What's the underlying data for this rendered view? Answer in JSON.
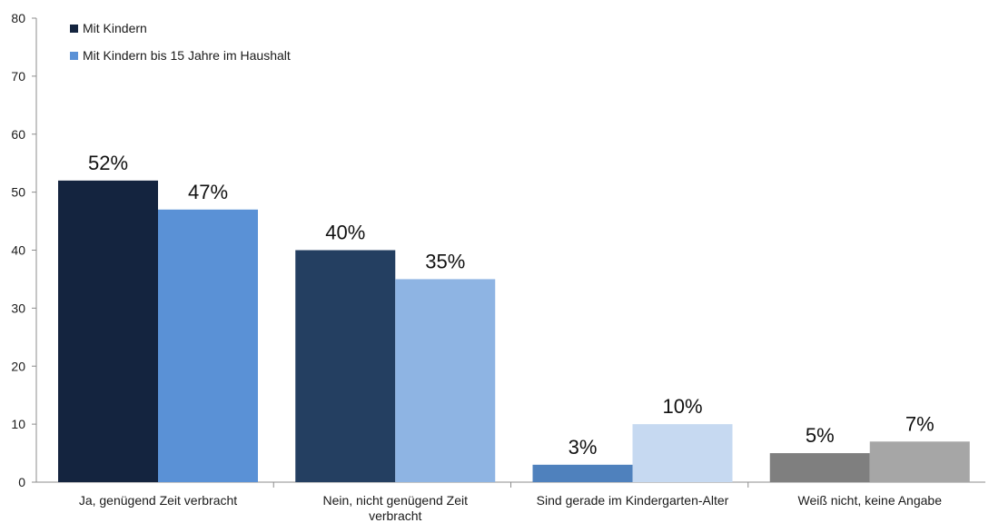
{
  "chart_data": {
    "type": "bar",
    "title": "",
    "xlabel": "",
    "ylabel": "",
    "ylim": [
      0,
      80
    ],
    "yticks": [
      0,
      10,
      20,
      30,
      40,
      50,
      60,
      70,
      80
    ],
    "grid": false,
    "legend_position": "top-left",
    "categories": [
      [
        "Ja, genügend Zeit verbracht"
      ],
      [
        "Nein, nicht genügend Zeit",
        "verbracht"
      ],
      [
        "Sind gerade im Kindergarten-Alter"
      ],
      [
        "Weiß nicht, keine Angabe"
      ]
    ],
    "series": [
      {
        "name": "Mit Kindern",
        "values": [
          52,
          40,
          3,
          5
        ],
        "labels": [
          "52%",
          "40%",
          "3%",
          "5%"
        ],
        "legend_color": "#14243f",
        "colors": [
          "#14243f",
          "#243f61",
          "#4f81bd",
          "#7f7f7f"
        ]
      },
      {
        "name": "Mit Kindern bis 15 Jahre im Haushalt",
        "values": [
          47,
          35,
          10,
          7
        ],
        "labels": [
          "47%",
          "35%",
          "10%",
          "7%"
        ],
        "legend_color": "#5a91d6",
        "colors": [
          "#5a91d6",
          "#8eb4e3",
          "#c6d9f1",
          "#a6a6a6"
        ]
      }
    ]
  }
}
